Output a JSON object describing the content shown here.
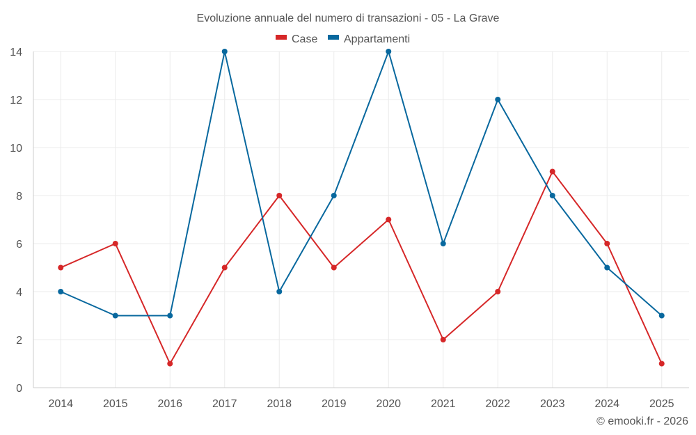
{
  "chart_data": {
    "type": "line",
    "title": "Evoluzione annuale del numero di transazioni - 05 - La Grave",
    "categories": [
      "2014",
      "2015",
      "2016",
      "2017",
      "2018",
      "2019",
      "2020",
      "2021",
      "2022",
      "2023",
      "2024",
      "2025"
    ],
    "series": [
      {
        "name": "Case",
        "color": "#d62728",
        "values": [
          5,
          6,
          1,
          5,
          8,
          5,
          7,
          2,
          4,
          9,
          6,
          1
        ]
      },
      {
        "name": "Appartamenti",
        "color": "#08689e",
        "values": [
          4,
          3,
          3,
          14,
          4,
          8,
          14,
          6,
          12,
          8,
          5,
          3
        ]
      }
    ],
    "ylim": [
      0,
      14
    ],
    "yticks": [
      0,
      2,
      4,
      6,
      8,
      10,
      12,
      14
    ],
    "xlabel": "",
    "ylabel": "",
    "grid": true,
    "legend": "top-center"
  },
  "credit": "© emooki.fr - 2026"
}
